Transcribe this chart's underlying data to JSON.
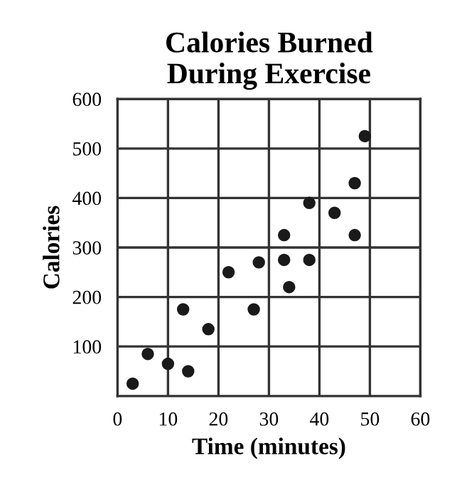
{
  "chart_data": {
    "type": "scatter",
    "title": "Calories Burned\nDuring Exercise",
    "xlabel": "Time (minutes)",
    "ylabel": "Calories",
    "x": [
      3,
      6,
      10,
      13,
      14,
      18,
      22,
      27,
      28,
      33,
      33,
      34,
      38,
      38,
      43,
      47,
      47,
      49
    ],
    "values": [
      25,
      85,
      65,
      175,
      50,
      135,
      250,
      175,
      270,
      275,
      325,
      220,
      275,
      390,
      370,
      430,
      325,
      525
    ],
    "color": "#1a1a1a",
    "marker": "circle",
    "xlim": [
      0,
      60
    ],
    "xticks": [
      0,
      10,
      20,
      30,
      40,
      50,
      60
    ],
    "ylim": [
      0,
      600
    ],
    "yticks": [
      100,
      200,
      300,
      400,
      500,
      600
    ],
    "grid": true
  }
}
